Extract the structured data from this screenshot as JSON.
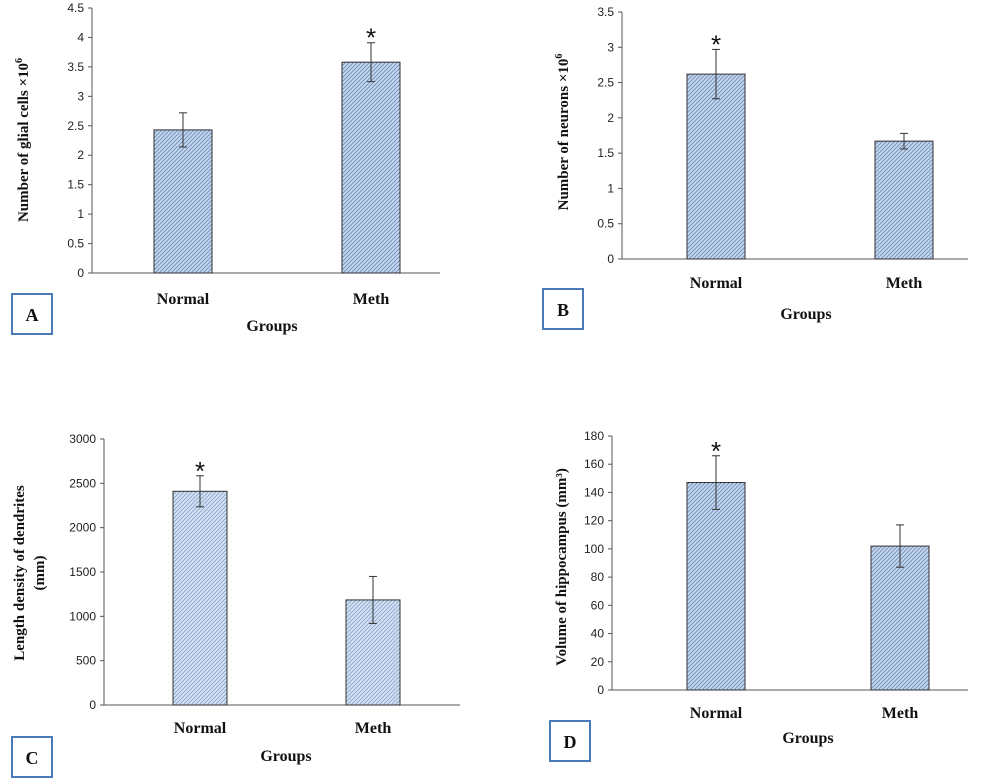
{
  "chart_data": [
    {
      "type": "bar",
      "panel_label": "A",
      "categories": [
        "Normal",
        "Meth"
      ],
      "values": [
        2.43,
        3.58
      ],
      "errors": [
        0.29,
        0.33
      ],
      "significant": [
        false,
        true
      ],
      "significance_marker": "*",
      "ylabel": "Number of glial cells ×10",
      "ylabel_sup": "6",
      "xlabel": "Groups",
      "ylim": [
        0,
        4.5
      ],
      "yticks": [
        "0",
        "0.5",
        "1",
        "1.5",
        "2",
        "2.5",
        "3",
        "3.5",
        "4",
        "4.5"
      ]
    },
    {
      "type": "bar",
      "panel_label": "B",
      "categories": [
        "Normal",
        "Meth"
      ],
      "values": [
        2.62,
        1.67
      ],
      "errors": [
        0.35,
        0.11
      ],
      "significant": [
        true,
        false
      ],
      "significance_marker": "*",
      "ylabel": "Number of neurons ×10",
      "ylabel_sup": "6",
      "xlabel": "Groups",
      "ylim": [
        0,
        3.5
      ],
      "yticks": [
        "0",
        "0.5",
        "1",
        "1.5",
        "2",
        "2.5",
        "3",
        "3.5"
      ]
    },
    {
      "type": "bar",
      "panel_label": "C",
      "categories": [
        "Normal",
        "Meth"
      ],
      "values": [
        2410,
        1185
      ],
      "errors": [
        175,
        265
      ],
      "significant": [
        true,
        false
      ],
      "significance_marker": "*",
      "ylabel": "Length density of dendrites",
      "ylabel_line2": "(mm)",
      "xlabel": "Groups",
      "ylim": [
        0,
        3000
      ],
      "yticks": [
        "0",
        "500",
        "1000",
        "1500",
        "2000",
        "2500",
        "3000"
      ]
    },
    {
      "type": "bar",
      "panel_label": "D",
      "categories": [
        "Normal",
        "Meth"
      ],
      "values": [
        147,
        102
      ],
      "errors": [
        19,
        15
      ],
      "significant": [
        true,
        false
      ],
      "significance_marker": "*",
      "ylabel": "Volume of hippocampus (mm³)",
      "xlabel": "Groups",
      "ylim": [
        0,
        180
      ],
      "yticks": [
        "0",
        "20",
        "40",
        "60",
        "80",
        "100",
        "120",
        "140",
        "160",
        "180"
      ]
    }
  ],
  "colors": {
    "bar_fill": "#c6d6ec",
    "bar_hatch": "#6f8fbf",
    "bar_border": "#2f2f2f",
    "axis": "#555555",
    "label_box_border": "#4a7ab8"
  }
}
